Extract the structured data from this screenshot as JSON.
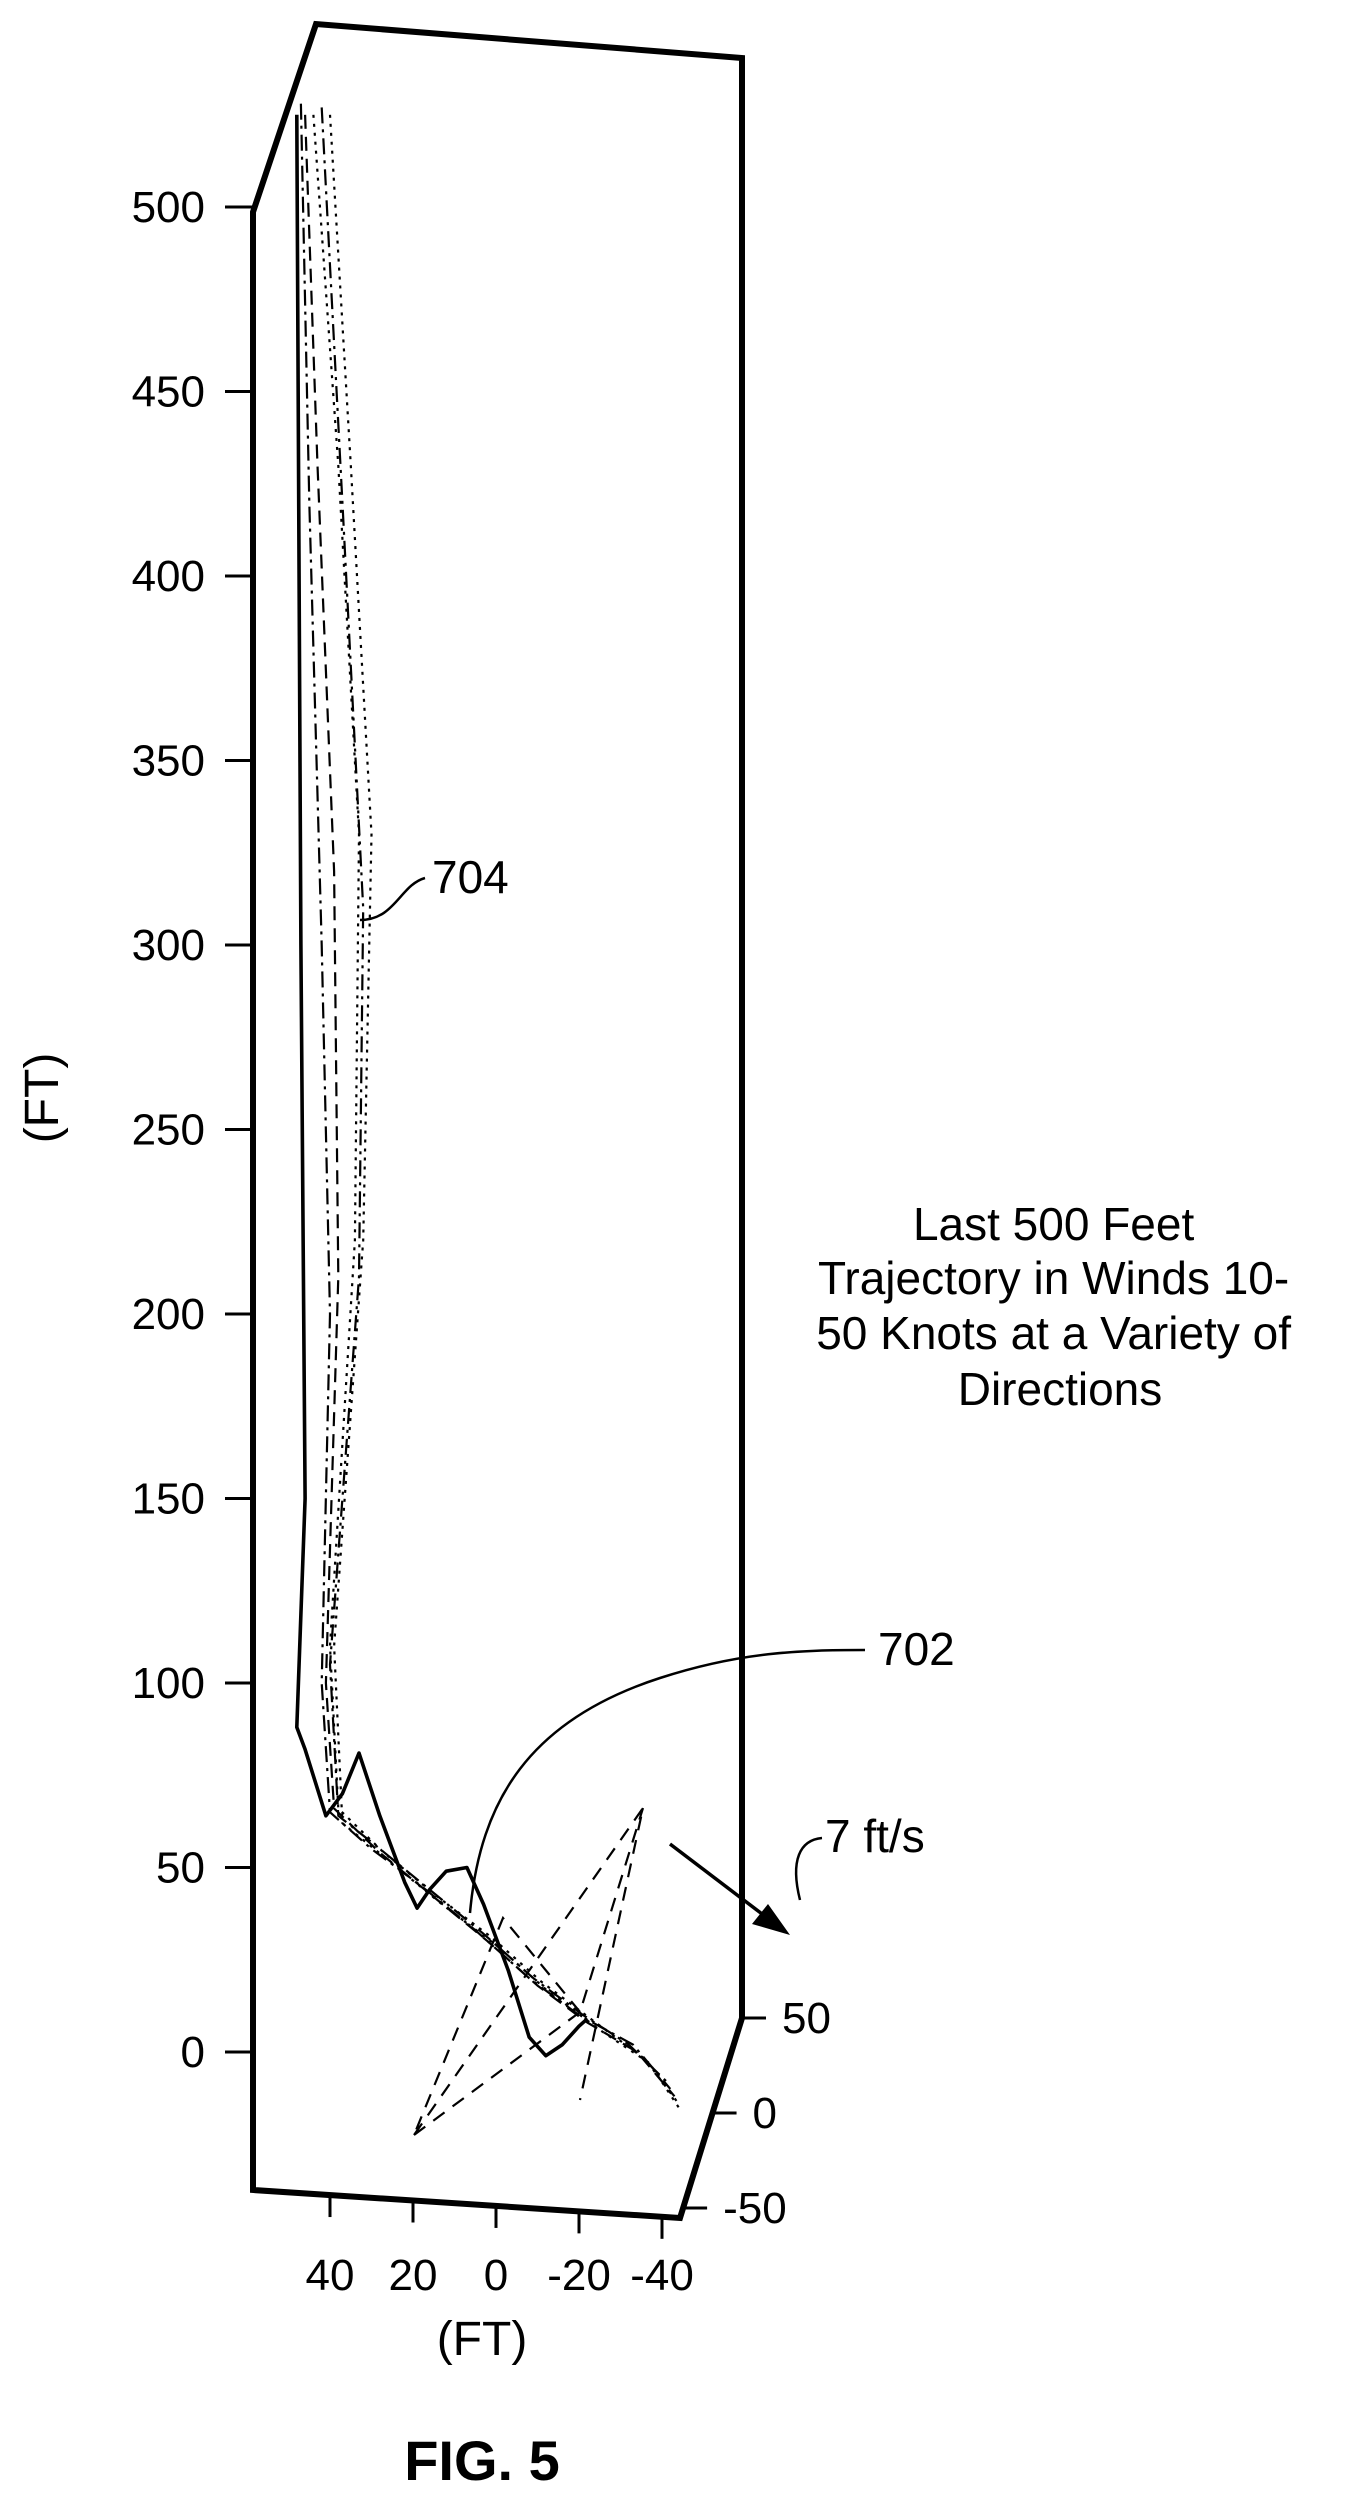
{
  "figure": {
    "label": "FIG. 5"
  },
  "chart_data": {
    "type": "line",
    "projection": "3d",
    "annotation": "Last 500 Feet Trajectory in Winds 10-50 Knots at a Variety of Directions",
    "annotation_lines": [
      "Last 500 Feet",
      "Trajectory in Winds 10-",
      "50 Knots at a Variety of",
      "Directions"
    ],
    "zlabel": "(FT)",
    "xlabel": "(FT)",
    "z_ticks": [
      "500",
      "450",
      "400",
      "350",
      "300",
      "250",
      "200",
      "150",
      "100",
      "50",
      "0"
    ],
    "x_ticks": [
      "40",
      "20",
      "0",
      "-20",
      "-40"
    ],
    "y_ticks": [
      "50",
      "0",
      "-50"
    ],
    "zlim": [
      -40,
      530
    ],
    "xlim": [
      -45,
      55
    ],
    "ylim": [
      -60,
      60
    ],
    "callouts": {
      "guided": "702",
      "unguided": "704",
      "wind": "7 ft/s"
    },
    "series": [
      {
        "style": "solid",
        "points": [
          [
            48,
            0,
            525
          ],
          [
            47,
            0,
            300
          ],
          [
            46,
            0,
            150
          ],
          [
            48,
            0,
            88
          ],
          [
            46,
            0,
            82
          ],
          [
            41,
            0,
            64
          ],
          [
            37,
            0,
            70
          ],
          [
            33,
            0,
            81
          ],
          [
            28,
            0,
            64
          ],
          [
            22,
            0,
            46
          ],
          [
            19,
            0,
            39
          ],
          [
            16,
            0,
            44
          ],
          [
            12,
            0,
            49
          ],
          [
            7,
            0,
            50
          ],
          [
            3,
            0,
            40
          ],
          [
            -3,
            0,
            22
          ],
          [
            -8,
            0,
            4
          ],
          [
            -12,
            0,
            -1
          ],
          [
            -16,
            0,
            2
          ],
          [
            -20,
            0,
            7
          ],
          [
            -22,
            0,
            9
          ]
        ]
      },
      {
        "style": "dash-dot",
        "points": [
          [
            47,
            0,
            528
          ],
          [
            45,
            0,
            420
          ],
          [
            42,
            0,
            300
          ],
          [
            40,
            0,
            200
          ],
          [
            42,
            0,
            100
          ],
          [
            40,
            0,
            65
          ],
          [
            30,
            0,
            55
          ],
          [
            18,
            0,
            45
          ],
          [
            5,
            0,
            33
          ],
          [
            -8,
            0,
            20
          ],
          [
            -20,
            0,
            10
          ],
          [
            -33,
            0,
            2
          ],
          [
            -42,
            0,
            -10
          ]
        ]
      },
      {
        "style": "dashed",
        "points": [
          [
            46,
            0,
            525
          ],
          [
            43,
            0,
            430
          ],
          [
            39,
            0,
            320
          ],
          [
            38,
            0,
            210
          ],
          [
            41,
            0,
            100
          ],
          [
            39,
            0,
            66
          ],
          [
            28,
            0,
            54
          ],
          [
            15,
            0,
            42
          ],
          [
            2,
            0,
            30
          ],
          [
            -10,
            0,
            18
          ],
          [
            -22,
            0,
            8
          ],
          [
            -34,
            0,
            0
          ],
          [
            -43,
            0,
            -12
          ]
        ]
      },
      {
        "style": "dotted",
        "points": [
          [
            44,
            0,
            525
          ],
          [
            38,
            0,
            430
          ],
          [
            33,
            0,
            330
          ],
          [
            34,
            0,
            220
          ],
          [
            40,
            0,
            110
          ],
          [
            38,
            0,
            66
          ],
          [
            27,
            0,
            54
          ],
          [
            14,
            0,
            42
          ],
          [
            1,
            0,
            31
          ],
          [
            -11,
            0,
            19
          ],
          [
            -24,
            0,
            8
          ],
          [
            -36,
            0,
            -2
          ],
          [
            -44,
            0,
            -14
          ]
        ]
      },
      {
        "style": "dotted",
        "points": [
          [
            40,
            0,
            525
          ],
          [
            35,
            0,
            430
          ],
          [
            30,
            0,
            330
          ],
          [
            32,
            0,
            220
          ],
          [
            39,
            0,
            110
          ],
          [
            37,
            0,
            62
          ],
          [
            26,
            0,
            52
          ],
          [
            13,
            0,
            40
          ],
          [
            0,
            0,
            29
          ],
          [
            -12,
            0,
            17
          ],
          [
            -25,
            0,
            6
          ],
          [
            -37,
            0,
            -3
          ],
          [
            -44,
            0,
            -15
          ]
        ]
      },
      {
        "style": "dash-dot",
        "points": [
          [
            42,
            0,
            527
          ],
          [
            37,
            0,
            420
          ],
          [
            32,
            0,
            310
          ],
          [
            33,
            0,
            210
          ],
          [
            40,
            0,
            105
          ],
          [
            38,
            0,
            64
          ],
          [
            29,
            0,
            56
          ],
          [
            16,
            0,
            44
          ],
          [
            3,
            0,
            32
          ],
          [
            -9,
            0,
            20
          ],
          [
            -21,
            0,
            10
          ],
          [
            -32,
            0,
            2
          ],
          [
            -42,
            0,
            -9
          ]
        ]
      }
    ],
    "wind_vector": {
      "from": [
        10,
        30,
        20
      ],
      "to": [
        -20,
        50,
        -5
      ]
    }
  }
}
